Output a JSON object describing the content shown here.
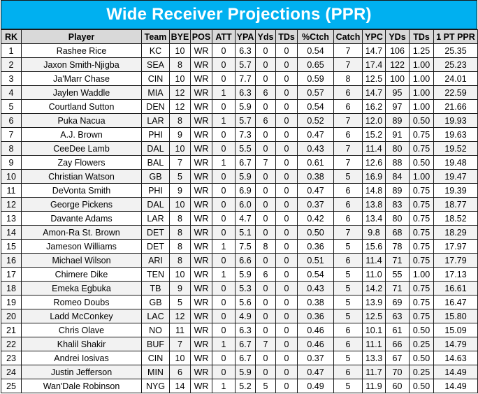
{
  "title": "Wide Receiver Projections (PPR)",
  "columns": [
    "RK",
    "Player",
    "Team",
    "BYE",
    "POS",
    "ATT",
    "YPA",
    "Yds",
    "TDs",
    "%Ctch",
    "Catch",
    "YPC",
    "YDs",
    "TDs",
    "1 PT PPR"
  ],
  "rows": [
    [
      "1",
      "Rashee Rice",
      "KC",
      "10",
      "WR",
      "0",
      "6.3",
      "0",
      "0",
      "0.54",
      "7",
      "14.7",
      "106",
      "1.25",
      "25.35"
    ],
    [
      "2",
      "Jaxon Smith-Njigba",
      "SEA",
      "8",
      "WR",
      "0",
      "5.7",
      "0",
      "0",
      "0.65",
      "7",
      "17.4",
      "122",
      "1.00",
      "25.23"
    ],
    [
      "3",
      "Ja'Marr Chase",
      "CIN",
      "10",
      "WR",
      "0",
      "7.7",
      "0",
      "0",
      "0.59",
      "8",
      "12.5",
      "100",
      "1.00",
      "24.01"
    ],
    [
      "4",
      "Jaylen Waddle",
      "MIA",
      "12",
      "WR",
      "1",
      "6.3",
      "6",
      "0",
      "0.57",
      "6",
      "14.7",
      "95",
      "1.00",
      "22.59"
    ],
    [
      "5",
      "Courtland Sutton",
      "DEN",
      "12",
      "WR",
      "0",
      "5.9",
      "0",
      "0",
      "0.54",
      "6",
      "16.2",
      "97",
      "1.00",
      "21.66"
    ],
    [
      "6",
      "Puka Nacua",
      "LAR",
      "8",
      "WR",
      "1",
      "5.7",
      "6",
      "0",
      "0.52",
      "7",
      "12.0",
      "89",
      "0.50",
      "19.93"
    ],
    [
      "7",
      "A.J. Brown",
      "PHI",
      "9",
      "WR",
      "0",
      "7.3",
      "0",
      "0",
      "0.47",
      "6",
      "15.2",
      "91",
      "0.75",
      "19.63"
    ],
    [
      "8",
      "CeeDee Lamb",
      "DAL",
      "10",
      "WR",
      "0",
      "5.5",
      "0",
      "0",
      "0.43",
      "7",
      "11.4",
      "80",
      "0.75",
      "19.52"
    ],
    [
      "9",
      "Zay Flowers",
      "BAL",
      "7",
      "WR",
      "1",
      "6.7",
      "7",
      "0",
      "0.61",
      "7",
      "12.6",
      "88",
      "0.50",
      "19.48"
    ],
    [
      "10",
      "Christian Watson",
      "GB",
      "5",
      "WR",
      "0",
      "5.9",
      "0",
      "0",
      "0.38",
      "5",
      "16.9",
      "84",
      "1.00",
      "19.47"
    ],
    [
      "11",
      "DeVonta Smith",
      "PHI",
      "9",
      "WR",
      "0",
      "6.9",
      "0",
      "0",
      "0.47",
      "6",
      "14.8",
      "89",
      "0.75",
      "19.39"
    ],
    [
      "12",
      "George Pickens",
      "DAL",
      "10",
      "WR",
      "0",
      "6.0",
      "0",
      "0",
      "0.37",
      "6",
      "13.8",
      "83",
      "0.75",
      "18.77"
    ],
    [
      "13",
      "Davante Adams",
      "LAR",
      "8",
      "WR",
      "0",
      "4.7",
      "0",
      "0",
      "0.42",
      "6",
      "13.4",
      "80",
      "0.75",
      "18.52"
    ],
    [
      "14",
      "Amon-Ra St. Brown",
      "DET",
      "8",
      "WR",
      "0",
      "5.1",
      "0",
      "0",
      "0.50",
      "7",
      "9.8",
      "68",
      "0.75",
      "18.29"
    ],
    [
      "15",
      "Jameson Williams",
      "DET",
      "8",
      "WR",
      "1",
      "7.5",
      "8",
      "0",
      "0.36",
      "5",
      "15.6",
      "78",
      "0.75",
      "17.97"
    ],
    [
      "16",
      "Michael Wilson",
      "ARI",
      "8",
      "WR",
      "0",
      "6.6",
      "0",
      "0",
      "0.51",
      "6",
      "11.4",
      "71",
      "0.75",
      "17.79"
    ],
    [
      "17",
      "Chimere Dike",
      "TEN",
      "10",
      "WR",
      "1",
      "5.9",
      "6",
      "0",
      "0.54",
      "5",
      "11.0",
      "55",
      "1.00",
      "17.13"
    ],
    [
      "18",
      "Emeka Egbuka",
      "TB",
      "9",
      "WR",
      "0",
      "5.3",
      "0",
      "0",
      "0.43",
      "5",
      "14.2",
      "71",
      "0.75",
      "16.61"
    ],
    [
      "19",
      "Romeo Doubs",
      "GB",
      "5",
      "WR",
      "0",
      "5.6",
      "0",
      "0",
      "0.38",
      "5",
      "13.9",
      "69",
      "0.75",
      "16.47"
    ],
    [
      "20",
      "Ladd McConkey",
      "LAC",
      "12",
      "WR",
      "0",
      "4.9",
      "0",
      "0",
      "0.36",
      "5",
      "12.5",
      "63",
      "0.75",
      "15.80"
    ],
    [
      "21",
      "Chris Olave",
      "NO",
      "11",
      "WR",
      "0",
      "6.3",
      "0",
      "0",
      "0.46",
      "6",
      "10.1",
      "61",
      "0.50",
      "15.09"
    ],
    [
      "22",
      "Khalil Shakir",
      "BUF",
      "7",
      "WR",
      "1",
      "6.7",
      "7",
      "0",
      "0.46",
      "6",
      "11.1",
      "66",
      "0.25",
      "14.79"
    ],
    [
      "23",
      "Andrei Iosivas",
      "CIN",
      "10",
      "WR",
      "0",
      "6.7",
      "0",
      "0",
      "0.37",
      "5",
      "13.3",
      "67",
      "0.50",
      "14.63"
    ],
    [
      "24",
      "Justin Jefferson",
      "MIN",
      "6",
      "WR",
      "0",
      "5.9",
      "0",
      "0",
      "0.47",
      "6",
      "11.7",
      "70",
      "0.25",
      "14.49"
    ],
    [
      "25",
      "Wan'Dale Robinson",
      "NYG",
      "14",
      "WR",
      "1",
      "5.2",
      "5",
      "0",
      "0.49",
      "5",
      "11.9",
      "60",
      "0.50",
      "14.49"
    ]
  ],
  "colors": {
    "title_bg": "#00b0f0",
    "title_text": "#ffffff",
    "header_bg": "#d9d9d9",
    "stripe_bg": "#f2f2f2",
    "grid": "#1a1a1a"
  }
}
